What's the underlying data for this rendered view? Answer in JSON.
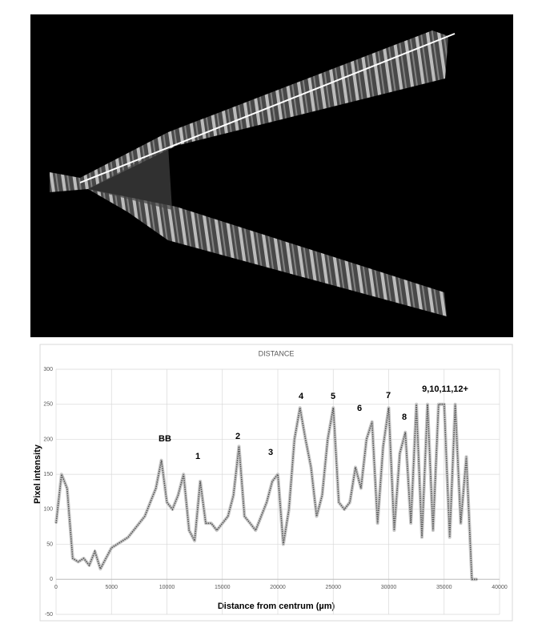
{
  "chart_data": {
    "type": "line",
    "title": "DISTANCE",
    "xlabel": "Distance from centrum (µm)",
    "ylabel": "Pixel intensity",
    "x": [
      0,
      500,
      1000,
      1500,
      2000,
      2500,
      3000,
      3500,
      4000,
      4500,
      5000,
      5500,
      6000,
      6500,
      7000,
      7500,
      8000,
      8500,
      9000,
      9500,
      10000,
      10500,
      11000,
      11500,
      12000,
      12500,
      13000,
      13500,
      14000,
      14500,
      15000,
      15500,
      16000,
      16500,
      17000,
      17500,
      18000,
      18500,
      19000,
      19500,
      20000,
      20500,
      21000,
      21500,
      22000,
      22500,
      23000,
      23500,
      24000,
      24500,
      25000,
      25500,
      26000,
      26500,
      27000,
      27500,
      28000,
      28500,
      29000,
      29500,
      30000,
      30500,
      31000,
      31500,
      32000,
      32500,
      33000,
      33500,
      34000,
      34500,
      35000,
      35500,
      36000,
      36500,
      37000,
      37500,
      38000
    ],
    "series": [
      {
        "name": "Pixel intensity",
        "color": "#555555",
        "values": [
          80,
          150,
          130,
          30,
          25,
          30,
          20,
          40,
          15,
          30,
          45,
          50,
          55,
          60,
          70,
          80,
          90,
          110,
          130,
          170,
          110,
          100,
          120,
          150,
          70,
          55,
          140,
          80,
          80,
          70,
          80,
          90,
          120,
          190,
          90,
          80,
          70,
          90,
          110,
          140,
          150,
          50,
          100,
          200,
          245,
          200,
          160,
          90,
          120,
          200,
          245,
          110,
          100,
          110,
          160,
          130,
          200,
          225,
          80,
          190,
          245,
          70,
          180,
          210,
          80,
          250,
          60,
          250,
          70,
          250,
          250,
          60,
          250,
          80,
          175,
          0,
          0
        ]
      }
    ],
    "annotations": [
      "BB",
      "1",
      "2",
      "3",
      "4",
      "5",
      "6",
      "7",
      "8",
      "9,10,11,12+"
    ],
    "xlim": [
      0,
      40000
    ],
    "xticks": [
      0,
      5000,
      10000,
      15000,
      20000,
      25000,
      30000,
      35000,
      40000
    ],
    "ylim": [
      -50,
      300
    ],
    "yticks": [
      -50,
      0,
      50,
      100,
      150,
      200,
      250,
      300
    ],
    "grid": true
  }
}
